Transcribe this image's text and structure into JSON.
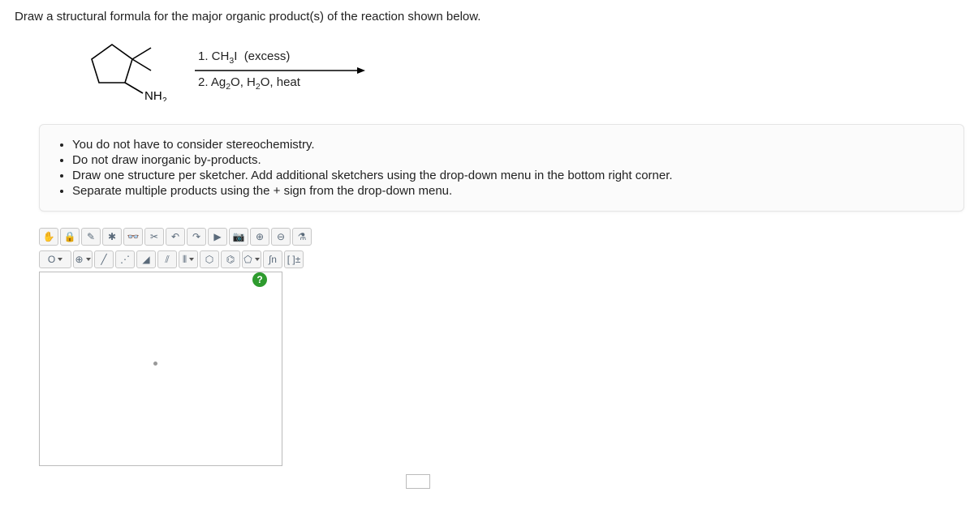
{
  "question": "Draw a structural formula for the major organic product(s) of the reaction shown below.",
  "reaction": {
    "reactant_label": "NH₂",
    "reagent1": "1. CH₃I  (excess)",
    "reagent2": "2. Ag₂O, H₂O, heat"
  },
  "instructions": [
    "You do not have to consider stereochemistry.",
    "Do not draw inorganic by-products.",
    "Draw one structure per sketcher. Add additional sketchers using the drop-down menu in the bottom right corner.",
    "Separate multiple products using the + sign from the drop-down menu."
  ],
  "toolbar_row1": [
    {
      "name": "hand-icon",
      "glyph": "✋"
    },
    {
      "name": "lock-icon",
      "glyph": "🔒"
    },
    {
      "name": "draw-icon",
      "glyph": "✎"
    },
    {
      "name": "atom-icon",
      "glyph": "✱"
    },
    {
      "name": "glasses-icon",
      "glyph": "👓"
    },
    {
      "name": "scissors-icon",
      "glyph": "✂"
    },
    {
      "name": "undo-icon",
      "glyph": "↶"
    },
    {
      "name": "redo-icon",
      "glyph": "↷"
    },
    {
      "name": "play-icon",
      "glyph": "▶"
    },
    {
      "name": "camera-icon",
      "glyph": "📷"
    },
    {
      "name": "zoom-in-icon",
      "glyph": "⊕"
    },
    {
      "name": "zoom-out-icon",
      "glyph": "⊖"
    },
    {
      "name": "molecule-icon",
      "glyph": "⚗"
    }
  ],
  "toolbar_row2": [
    {
      "name": "element-o",
      "label": "O",
      "wide": true,
      "drop": true
    },
    {
      "name": "add-atom-icon",
      "glyph": "⊕",
      "drop": true
    },
    {
      "name": "bond-single-icon",
      "glyph": "╱"
    },
    {
      "name": "bond-dotted-icon",
      "glyph": "⋰"
    },
    {
      "name": "bond-wedge-icon",
      "glyph": "◢"
    },
    {
      "name": "bond-double-icon",
      "glyph": "⫽"
    },
    {
      "name": "bond-triple-icon",
      "glyph": "⫴",
      "drop": true
    },
    {
      "name": "cyclohexane-icon",
      "glyph": "⬡"
    },
    {
      "name": "benzene-icon",
      "glyph": "⌬"
    },
    {
      "name": "cyclopentane-icon",
      "glyph": "⬠",
      "drop": true
    },
    {
      "name": "integral-icon",
      "glyph": "∫n"
    },
    {
      "name": "bracket-charge-icon",
      "glyph": "[ ]±"
    }
  ],
  "help_tooltip": "?",
  "colors": {
    "panel_bg": "#fbfbfb",
    "panel_border": "#e5e5e5",
    "btn_bg": "#f5f5f5",
    "help_bg": "#2e9b2e"
  }
}
